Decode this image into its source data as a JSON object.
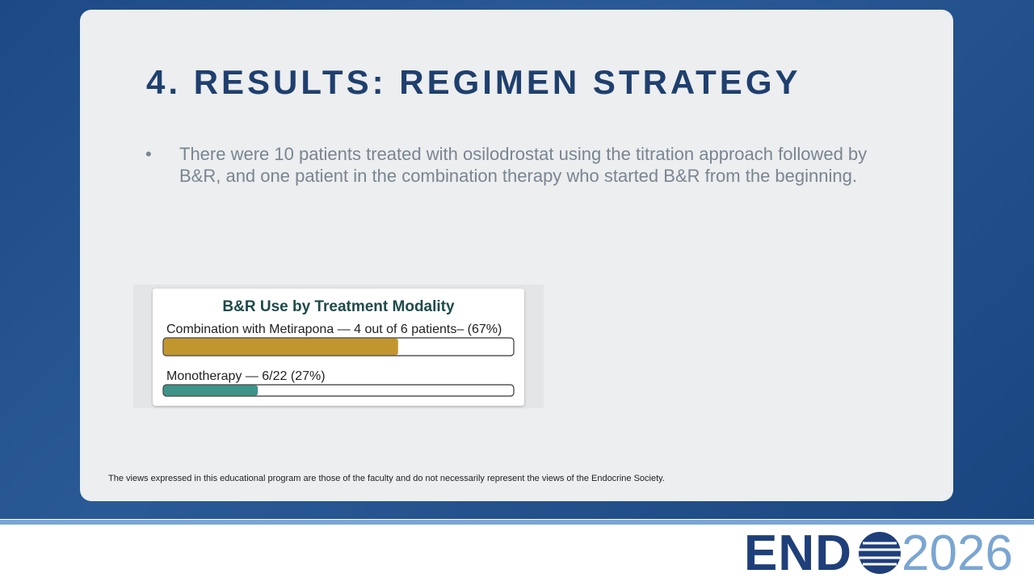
{
  "slide": {
    "title": "4. RESULTS: REGIMEN STRATEGY",
    "bullets": [
      "There were 10 patients treated with osilodrostat using the titration approach followed by B&R,  and one patient in the combination therapy who started B&R from the beginning."
    ],
    "disclaimer": "The views expressed in this educational program are those of the faculty and do not necessarily represent the views of the Endocrine Society."
  },
  "chart_data": {
    "type": "bar",
    "orientation": "horizontal",
    "title": "B&R Use by Treatment Modality",
    "categories": [
      "Combination with Metirapona — 4 out of 6 patients– (67%)",
      "Monotherapy — 6/22 (27%)"
    ],
    "values": [
      67,
      27
    ],
    "colors": [
      "#c2962f",
      "#3e9488"
    ],
    "xlim": [
      0,
      100
    ]
  },
  "footer": {
    "logo_left": "END",
    "logo_right": "2026"
  }
}
